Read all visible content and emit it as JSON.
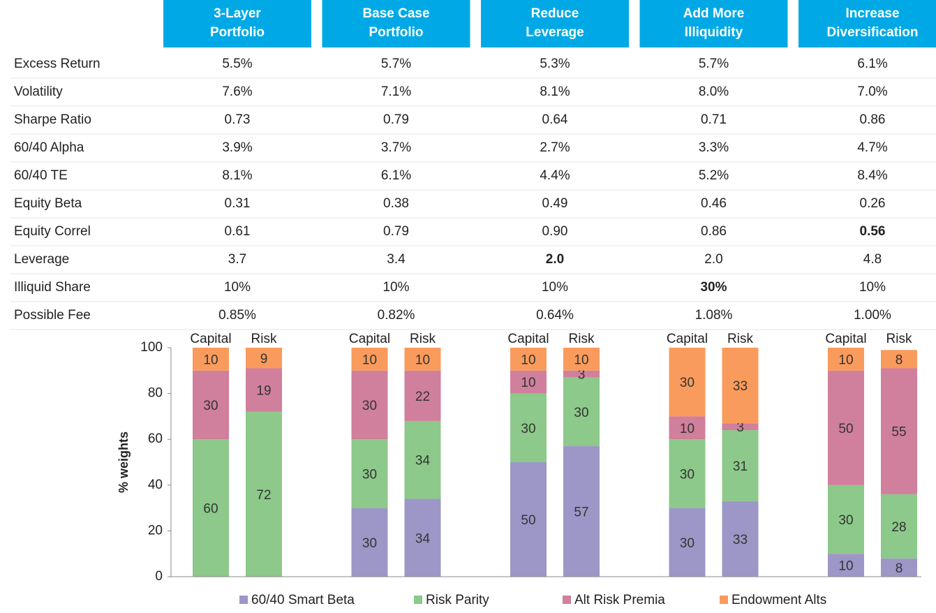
{
  "table": {
    "columns": [
      [
        "3-Layer",
        "Portfolio"
      ],
      [
        "Base Case",
        "Portfolio"
      ],
      [
        "Reduce",
        "Leverage"
      ],
      [
        "Add More",
        "Illiquidity"
      ],
      [
        "Increase",
        "Diversification"
      ]
    ],
    "rows": [
      [
        "Excess Return",
        "5.5%",
        "5.7%",
        "5.3%",
        "5.7%",
        "6.1%"
      ],
      [
        "Volatility",
        "7.6%",
        "7.1%",
        "8.1%",
        "8.0%",
        "7.0%"
      ],
      [
        "Sharpe Ratio",
        "0.73",
        "0.79",
        "0.64",
        "0.71",
        "0.86"
      ],
      [
        "60/40 Alpha",
        "3.9%",
        "3.7%",
        "2.7%",
        "3.3%",
        "4.7%"
      ],
      [
        "60/40 TE",
        "8.1%",
        "6.1%",
        "4.4%",
        "5.2%",
        "8.4%"
      ],
      [
        "Equity Beta",
        "0.31",
        "0.38",
        "0.49",
        "0.46",
        "0.26"
      ],
      [
        "Equity Correl",
        "0.61",
        "0.79",
        "0.90",
        "0.86",
        "0.56"
      ],
      [
        "Leverage",
        "3.7",
        "3.4",
        "2.0",
        "2.0",
        "4.8"
      ],
      [
        "Illiquid Share",
        "10%",
        "10%",
        "10%",
        "30%",
        "10%"
      ],
      [
        "Possible Fee",
        "0.85%",
        "0.82%",
        "0.64%",
        "1.08%",
        "1.00%"
      ]
    ],
    "bold_cells": [
      [
        6,
        5
      ],
      [
        7,
        3
      ],
      [
        8,
        4
      ]
    ]
  },
  "chart_data": {
    "type": "stacked_bar",
    "ylabel": "% weights",
    "categories": [
      "Capital",
      "Risk",
      "Capital",
      "Risk",
      "Capital",
      "Risk",
      "Capital",
      "Risk",
      "Capital",
      "Risk"
    ],
    "series": [
      {
        "name": "60/40 Smart Beta",
        "color": "#9d97c7",
        "values": [
          null,
          null,
          30,
          34,
          50,
          57,
          30,
          33,
          10,
          8
        ]
      },
      {
        "name": "Risk Parity",
        "color": "#8cc98a",
        "values": [
          60,
          72,
          30,
          34,
          30,
          30,
          30,
          31,
          30,
          28
        ]
      },
      {
        "name": "Alt Risk Premia",
        "color": "#d07f9c",
        "values": [
          30,
          19,
          30,
          22,
          10,
          3,
          10,
          3,
          50,
          55
        ]
      },
      {
        "name": "Endowment Alts",
        "color": "#f99b5c",
        "values": [
          10,
          9,
          10,
          10,
          10,
          10,
          30,
          33,
          10,
          8
        ]
      }
    ],
    "ylim": [
      0,
      100
    ],
    "yticks": [
      0,
      20,
      40,
      60,
      80,
      100
    ],
    "grid": false,
    "legend": "bottom"
  }
}
